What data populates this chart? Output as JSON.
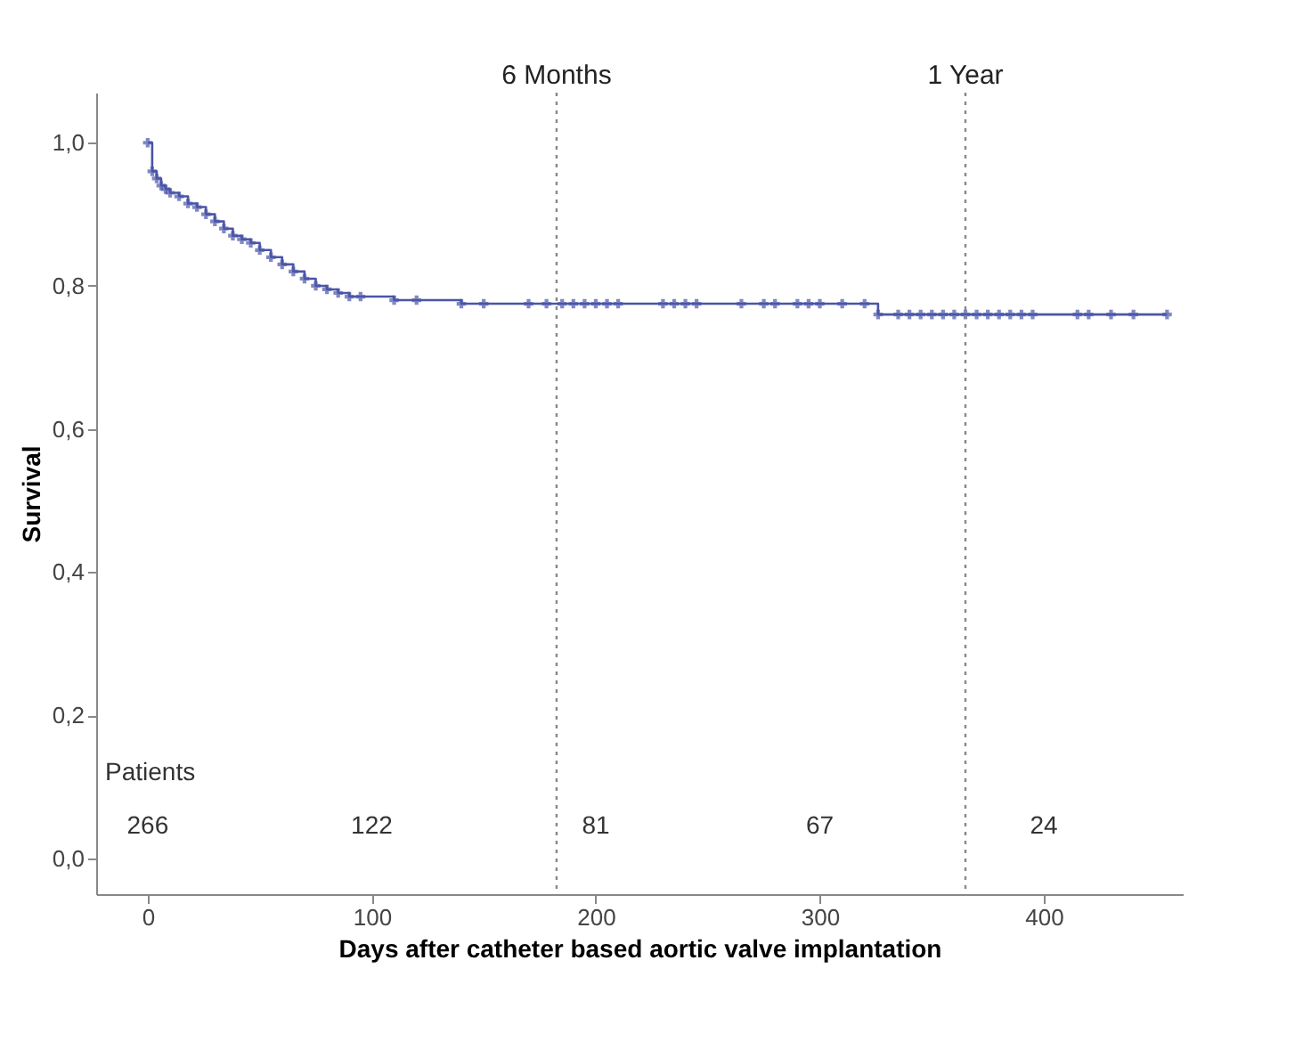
{
  "chart_data": {
    "type": "step",
    "xlabel": "Days after catheter based aortic valve implantation",
    "ylabel": "Survival",
    "x": [
      0,
      2,
      4,
      6,
      8,
      10,
      14,
      18,
      22,
      26,
      30,
      34,
      38,
      42,
      46,
      50,
      55,
      60,
      65,
      70,
      75,
      80,
      85,
      90,
      95,
      110,
      120,
      140,
      150,
      170,
      178,
      185,
      190,
      195,
      200,
      205,
      210,
      230,
      235,
      240,
      245,
      265,
      275,
      280,
      290,
      295,
      300,
      310,
      320,
      326,
      335,
      340,
      345,
      350,
      355,
      360,
      365,
      370,
      375,
      380,
      385,
      390,
      395,
      415,
      420,
      430,
      440,
      455
    ],
    "series": [
      {
        "color": "#4a55a8",
        "values": [
          1.0,
          0.96,
          0.95,
          0.94,
          0.935,
          0.93,
          0.925,
          0.915,
          0.91,
          0.9,
          0.89,
          0.88,
          0.87,
          0.865,
          0.86,
          0.85,
          0.84,
          0.83,
          0.82,
          0.81,
          0.8,
          0.795,
          0.79,
          0.785,
          0.785,
          0.78,
          0.78,
          0.775,
          0.775,
          0.775,
          0.775,
          0.775,
          0.775,
          0.775,
          0.775,
          0.775,
          0.775,
          0.775,
          0.775,
          0.775,
          0.775,
          0.775,
          0.775,
          0.775,
          0.775,
          0.775,
          0.775,
          0.775,
          0.775,
          0.76,
          0.76,
          0.76,
          0.76,
          0.76,
          0.76,
          0.76,
          0.76,
          0.76,
          0.76,
          0.76,
          0.76,
          0.76,
          0.76,
          0.76,
          0.76,
          0.76,
          0.76,
          0.76
        ]
      }
    ],
    "marker": "cross",
    "xlim": [
      -23,
      462
    ],
    "xticks": [
      0,
      100,
      200,
      300,
      400
    ],
    "ylim": [
      -0.05,
      1.07
    ],
    "yticks": [
      {
        "value": 0,
        "label": "0,0"
      },
      {
        "value": 0.2,
        "label": "0,2"
      },
      {
        "value": 0.4,
        "label": "0,4"
      },
      {
        "value": 0.6,
        "label": "0,6"
      },
      {
        "value": 0.8,
        "label": "0,8"
      },
      {
        "value": 1.0,
        "label": "1,0"
      }
    ],
    "grid": false,
    "ref_lines": [
      {
        "axis": "x",
        "value": 182.5,
        "label": "6 Months",
        "color": "#888888",
        "line_style": "dotted"
      },
      {
        "axis": "x",
        "value": 365,
        "label": "1 Year",
        "color": "#888888",
        "line_style": "dotted"
      }
    ],
    "annotations": [
      "Patients",
      "266",
      "122",
      "81",
      "67",
      "24"
    ]
  }
}
